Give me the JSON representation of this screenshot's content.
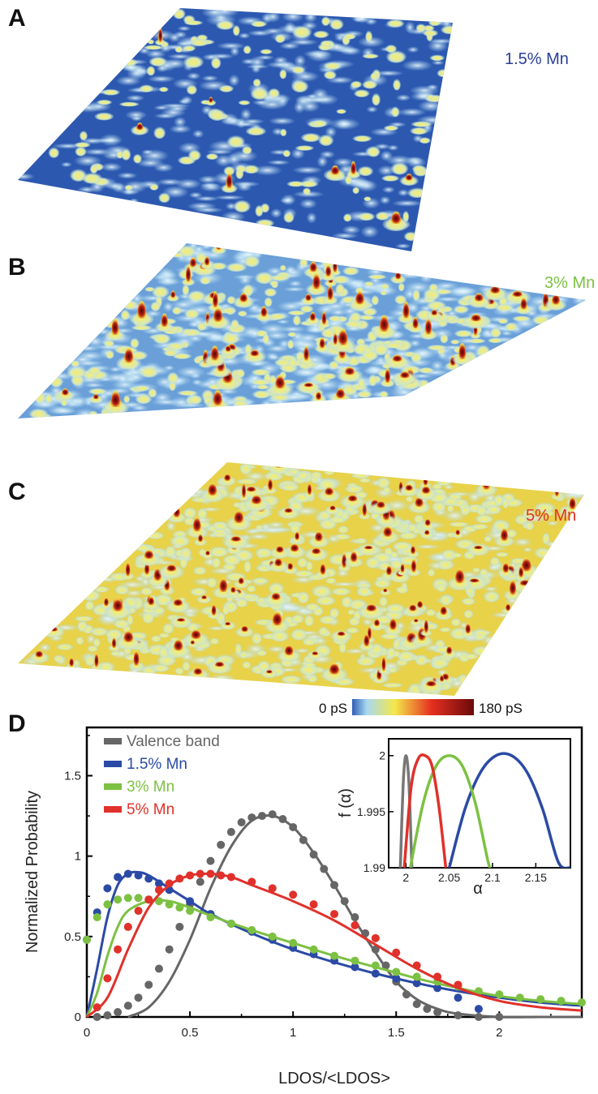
{
  "panels": {
    "a": {
      "letter": "A",
      "label": "1.5% Mn",
      "label_color": "#2a3f9a"
    },
    "b": {
      "letter": "B",
      "label": "3% Mn",
      "label_color": "#7cc142"
    },
    "c": {
      "letter": "C",
      "label": "5% Mn",
      "label_color": "#e0312a"
    },
    "d": {
      "letter": "D"
    }
  },
  "colorbar": {
    "min_label": "0 pS",
    "max_label": "180 pS",
    "stops": [
      "#2f5fb4",
      "#a8d8f0",
      "#f4e84a",
      "#e63020",
      "#6a0a0a"
    ]
  },
  "chart_data": [
    {
      "type": "line",
      "xlabel": "LDOS/<LDOS>",
      "ylabel": "Normalized Probability",
      "xlim": [
        0,
        2.4
      ],
      "ylim": [
        0,
        1.8
      ],
      "xticks": [
        0,
        0.5,
        1,
        1.5,
        2
      ],
      "xtick_labels": [
        "0",
        "0.5",
        "1",
        "1.5",
        "2"
      ],
      "yticks": [
        0,
        0.5,
        1,
        1.5
      ],
      "ytick_labels": [
        "0",
        "0.5",
        "1",
        "1.5"
      ],
      "legend": "top-left",
      "series": [
        {
          "name": "Valence band",
          "color": "#666666",
          "x": [
            0.2,
            0.3,
            0.4,
            0.5,
            0.6,
            0.7,
            0.8,
            0.9,
            1.0,
            1.1,
            1.2,
            1.3,
            1.4,
            1.5,
            1.6,
            1.7,
            1.8,
            2.0,
            2.2,
            2.4
          ],
          "y": [
            0.0,
            0.06,
            0.22,
            0.48,
            0.8,
            1.06,
            1.22,
            1.25,
            1.18,
            1.02,
            0.82,
            0.6,
            0.4,
            0.22,
            0.11,
            0.05,
            0.02,
            0.0,
            0.0,
            0.0
          ],
          "points_x": [
            0.05,
            0.1,
            0.15,
            0.2,
            0.25,
            0.3,
            0.35,
            0.4,
            0.45,
            0.5,
            0.55,
            0.6,
            0.65,
            0.7,
            0.75,
            0.8,
            0.85,
            0.9,
            0.95,
            1.0,
            1.05,
            1.1,
            1.15,
            1.2,
            1.25,
            1.3,
            1.35,
            1.4,
            1.45,
            1.5,
            1.55,
            1.6,
            1.65,
            1.7,
            1.8,
            1.9,
            2.0
          ],
          "points_y": [
            0.0,
            0.01,
            0.03,
            0.07,
            0.12,
            0.2,
            0.3,
            0.42,
            0.56,
            0.7,
            0.84,
            0.97,
            1.07,
            1.15,
            1.21,
            1.24,
            1.25,
            1.26,
            1.23,
            1.18,
            1.1,
            1.01,
            0.92,
            0.82,
            0.72,
            0.62,
            0.52,
            0.42,
            0.32,
            0.22,
            0.14,
            0.08,
            0.05,
            0.03,
            0.01,
            0.0,
            0.0
          ]
        },
        {
          "name": "1.5% Mn",
          "color": "#2b4aa5",
          "x": [
            0.0,
            0.05,
            0.1,
            0.15,
            0.2,
            0.25,
            0.3,
            0.4,
            0.5,
            0.6,
            0.8,
            1.0,
            1.2,
            1.4,
            1.6,
            1.8,
            2.0,
            2.2,
            2.4
          ],
          "y": [
            0.0,
            0.3,
            0.62,
            0.82,
            0.89,
            0.9,
            0.88,
            0.8,
            0.72,
            0.64,
            0.52,
            0.42,
            0.34,
            0.27,
            0.21,
            0.16,
            0.12,
            0.09,
            0.07
          ],
          "points_x": [
            0.0,
            0.05,
            0.1,
            0.15,
            0.2,
            0.25,
            0.3,
            0.35,
            0.4,
            0.5,
            0.6,
            0.7,
            0.8,
            0.9,
            1.0,
            1.1,
            1.2,
            1.3,
            1.4,
            1.5,
            1.6,
            1.7,
            1.8,
            1.9
          ],
          "points_y": [
            0.48,
            0.65,
            0.8,
            0.87,
            0.89,
            0.88,
            0.86,
            0.83,
            0.79,
            0.72,
            0.64,
            0.58,
            0.53,
            0.48,
            0.43,
            0.39,
            0.35,
            0.31,
            0.27,
            0.24,
            0.21,
            0.18,
            0.12,
            0.05
          ]
        },
        {
          "name": "3% Mn",
          "color": "#7cc142",
          "x": [
            0.0,
            0.05,
            0.1,
            0.15,
            0.2,
            0.3,
            0.4,
            0.5,
            0.6,
            0.8,
            1.0,
            1.2,
            1.4,
            1.6,
            1.8,
            2.0,
            2.2,
            2.4
          ],
          "y": [
            0.0,
            0.15,
            0.38,
            0.56,
            0.66,
            0.72,
            0.72,
            0.68,
            0.63,
            0.54,
            0.46,
            0.38,
            0.31,
            0.24,
            0.18,
            0.13,
            0.1,
            0.08
          ],
          "points_x": [
            0.0,
            0.05,
            0.1,
            0.15,
            0.2,
            0.25,
            0.3,
            0.35,
            0.4,
            0.45,
            0.5,
            0.6,
            0.7,
            0.8,
            0.9,
            1.0,
            1.1,
            1.2,
            1.3,
            1.4,
            1.5,
            1.6,
            1.7,
            1.8,
            1.9,
            2.0,
            2.1,
            2.2,
            2.3,
            2.4
          ],
          "points_y": [
            0.48,
            0.62,
            0.7,
            0.73,
            0.74,
            0.74,
            0.73,
            0.72,
            0.7,
            0.68,
            0.66,
            0.62,
            0.58,
            0.54,
            0.5,
            0.46,
            0.42,
            0.38,
            0.35,
            0.32,
            0.28,
            0.25,
            0.22,
            0.19,
            0.16,
            0.14,
            0.12,
            0.11,
            0.1,
            0.09
          ]
        },
        {
          "name": "5% Mn",
          "color": "#e0312a",
          "x": [
            0.0,
            0.1,
            0.2,
            0.3,
            0.4,
            0.5,
            0.6,
            0.7,
            0.8,
            1.0,
            1.2,
            1.4,
            1.6,
            1.8,
            2.0,
            2.2,
            2.4
          ],
          "y": [
            0.0,
            0.12,
            0.42,
            0.68,
            0.82,
            0.88,
            0.89,
            0.87,
            0.82,
            0.72,
            0.6,
            0.45,
            0.3,
            0.18,
            0.1,
            0.06,
            0.04
          ],
          "points_x": [
            0.05,
            0.1,
            0.15,
            0.2,
            0.25,
            0.3,
            0.35,
            0.4,
            0.45,
            0.5,
            0.55,
            0.6,
            0.65,
            0.7,
            0.8,
            0.9,
            1.0,
            1.1,
            1.2,
            1.3,
            1.4,
            1.5,
            1.6,
            1.7,
            1.8
          ],
          "points_y": [
            0.06,
            0.24,
            0.42,
            0.56,
            0.66,
            0.73,
            0.79,
            0.83,
            0.86,
            0.88,
            0.89,
            0.89,
            0.88,
            0.87,
            0.84,
            0.8,
            0.76,
            0.7,
            0.64,
            0.57,
            0.49,
            0.4,
            0.32,
            0.25,
            0.2
          ]
        }
      ]
    },
    {
      "type": "line",
      "xlabel": "α",
      "ylabel": "f (α)",
      "xlim": [
        1.98,
        2.19
      ],
      "ylim": [
        1.99,
        2.0015
      ],
      "xticks": [
        2.0,
        2.05,
        2.1,
        2.15
      ],
      "xtick_labels": [
        "2",
        "2.05",
        "2.1",
        "2.15"
      ],
      "yticks": [
        1.99,
        1.995,
        2.0
      ],
      "ytick_labels": [
        "1.99",
        "1.995",
        "2"
      ],
      "series": [
        {
          "name": "Valence band",
          "color": "#777777",
          "x": [
            1.9935,
            1.9968,
            2.0,
            2.0034,
            2.0068
          ],
          "y": [
            1.99,
            1.9975,
            2.0,
            1.9975,
            1.99
          ]
        },
        {
          "name": "1.5% Mn",
          "color": "#2b4aa5",
          "x": [
            2.05,
            2.068,
            2.086,
            2.104,
            2.122,
            2.14,
            2.158,
            2.176,
            2.19
          ],
          "y": [
            1.99,
            1.9952,
            1.9985,
            2.0,
            2.0,
            1.9985,
            1.9952,
            1.9905,
            1.99
          ]
        },
        {
          "name": "3% Mn",
          "color": "#7cc142",
          "x": [
            2.005,
            2.02,
            2.035,
            2.05,
            2.065,
            2.08,
            2.095,
            2.1
          ],
          "y": [
            1.99,
            1.9958,
            1.9991,
            2.0,
            1.9991,
            1.9958,
            1.9905,
            1.9895
          ]
        },
        {
          "name": "5% Mn",
          "color": "#e0312a",
          "x": [
            1.998,
            2.006,
            2.014,
            2.022,
            2.03,
            2.038,
            2.046
          ],
          "y": [
            1.99,
            1.9972,
            1.9997,
            2.0,
            1.9991,
            1.9955,
            1.99
          ]
        }
      ]
    }
  ]
}
